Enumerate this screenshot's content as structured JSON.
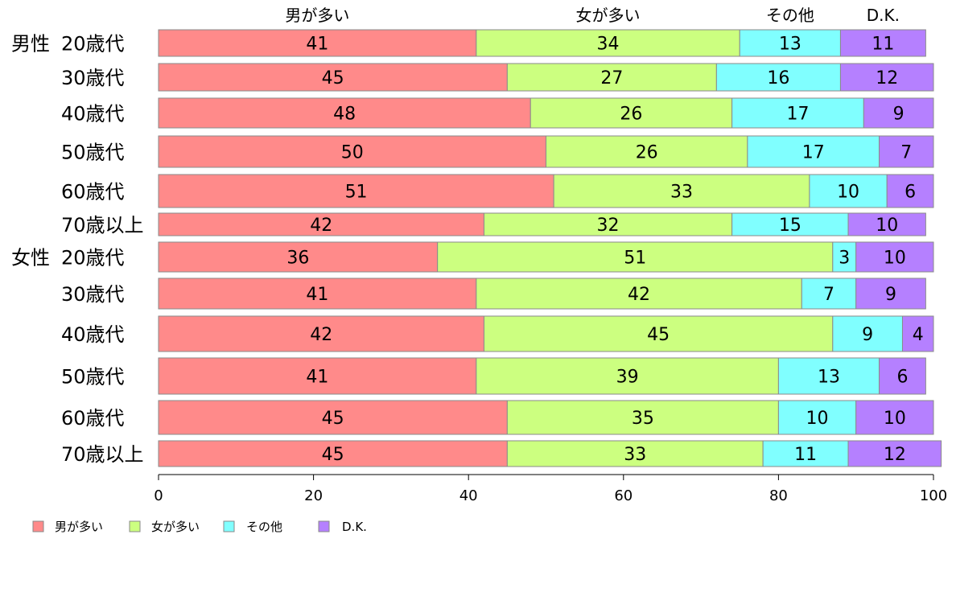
{
  "chart_data": {
    "type": "bar",
    "orientation": "horizontal",
    "stacked": true,
    "xlim": [
      0,
      100
    ],
    "x_ticks": [
      "0",
      "20",
      "40",
      "60",
      "80",
      "100"
    ],
    "grid": false,
    "legend_position": "bottom-left",
    "column_headers": [
      "男が多い",
      "女が多い",
      "その他",
      "D.K."
    ],
    "groups": [
      "男性",
      "女性"
    ],
    "categories": [
      {
        "group": "男性",
        "label": "20歳代"
      },
      {
        "group": "",
        "label": "30歳代"
      },
      {
        "group": "",
        "label": "40歳代"
      },
      {
        "group": "",
        "label": "50歳代"
      },
      {
        "group": "",
        "label": "60歳代"
      },
      {
        "group": "",
        "label": "70歳以上"
      },
      {
        "group": "女性",
        "label": "20歳代"
      },
      {
        "group": "",
        "label": "30歳代"
      },
      {
        "group": "",
        "label": "40歳代"
      },
      {
        "group": "",
        "label": "50歳代"
      },
      {
        "group": "",
        "label": "60歳代"
      },
      {
        "group": "",
        "label": "70歳以上"
      }
    ],
    "series": [
      {
        "name": "男が多い",
        "color": "#ff8a8a",
        "values": [
          41,
          45,
          48,
          50,
          51,
          42,
          36,
          41,
          42,
          41,
          45,
          45
        ]
      },
      {
        "name": "女が多い",
        "color": "#ccff80",
        "values": [
          34,
          27,
          26,
          26,
          33,
          32,
          51,
          42,
          45,
          39,
          35,
          33
        ]
      },
      {
        "name": "その他",
        "color": "#80ffff",
        "values": [
          13,
          16,
          17,
          17,
          10,
          15,
          3,
          7,
          9,
          13,
          10,
          11
        ]
      },
      {
        "name": "D.K.",
        "color": "#b580ff",
        "values": [
          11,
          12,
          9,
          7,
          6,
          10,
          10,
          9,
          4,
          6,
          10,
          12
        ]
      }
    ]
  }
}
